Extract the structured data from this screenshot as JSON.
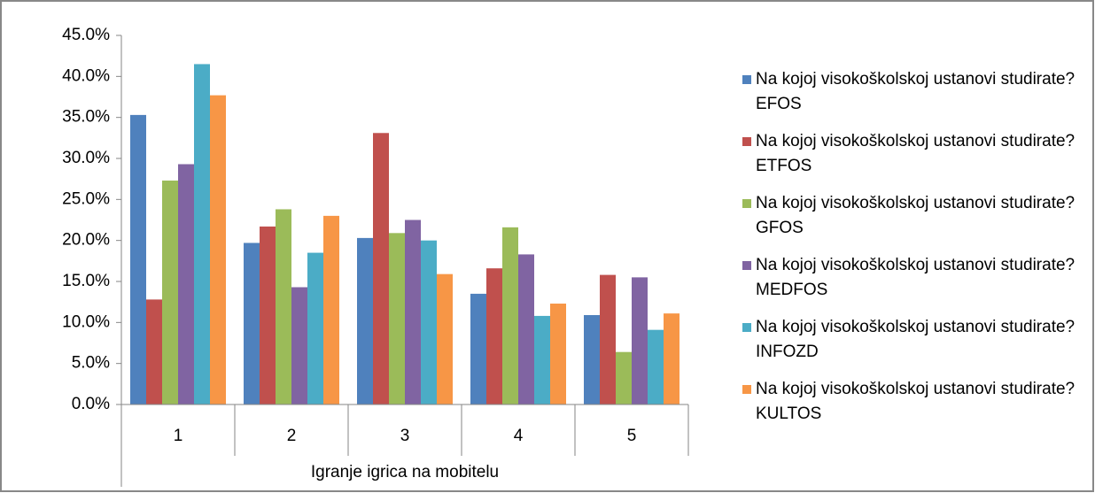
{
  "chart_data": {
    "type": "bar",
    "x_label": "Igranje igrica na mobitelu",
    "categories": [
      "1",
      "2",
      "3",
      "4",
      "5"
    ],
    "series": [
      {
        "name": "Na kojoj visokoškolskoj ustanovi studirate? EFOS",
        "color": "#4F81BD",
        "values": [
          35.3,
          19.7,
          20.3,
          13.5,
          10.9
        ]
      },
      {
        "name": "Na kojoj visokoškolskoj ustanovi studirate? ETFOS",
        "color": "#C0504D",
        "values": [
          12.8,
          21.7,
          33.1,
          16.6,
          15.8
        ]
      },
      {
        "name": "Na kojoj visokoškolskoj ustanovi studirate? GFOS",
        "color": "#9BBB59",
        "values": [
          27.3,
          23.8,
          20.9,
          21.6,
          6.4
        ]
      },
      {
        "name": "Na kojoj visokoškolskoj ustanovi studirate? MEDFOS",
        "color": "#8064A2",
        "values": [
          29.3,
          14.3,
          22.5,
          18.3,
          15.5
        ]
      },
      {
        "name": "Na kojoj visokoškolskoj ustanovi studirate? INFOZD",
        "color": "#4BACC6",
        "values": [
          41.5,
          18.5,
          20.0,
          10.8,
          9.1
        ]
      },
      {
        "name": "Na kojoj visokoškolskoj ustanovi studirate? KULTOS",
        "color": "#F79646",
        "values": [
          37.7,
          23.0,
          15.9,
          12.3,
          11.1
        ]
      }
    ],
    "ylim": [
      0,
      45
    ],
    "yticks": [
      {
        "value": 0,
        "label": "0.0%"
      },
      {
        "value": 5,
        "label": "5.0%"
      },
      {
        "value": 10,
        "label": "10.0%"
      },
      {
        "value": 15,
        "label": "15.0%"
      },
      {
        "value": 20,
        "label": "20.0%"
      },
      {
        "value": 25,
        "label": "25.0%"
      },
      {
        "value": 30,
        "label": "30.0%"
      },
      {
        "value": 35,
        "label": "35.0%"
      },
      {
        "value": 40,
        "label": "40.0%"
      },
      {
        "value": 45,
        "label": "45.0%"
      }
    ],
    "grid": false,
    "legend": "right"
  }
}
